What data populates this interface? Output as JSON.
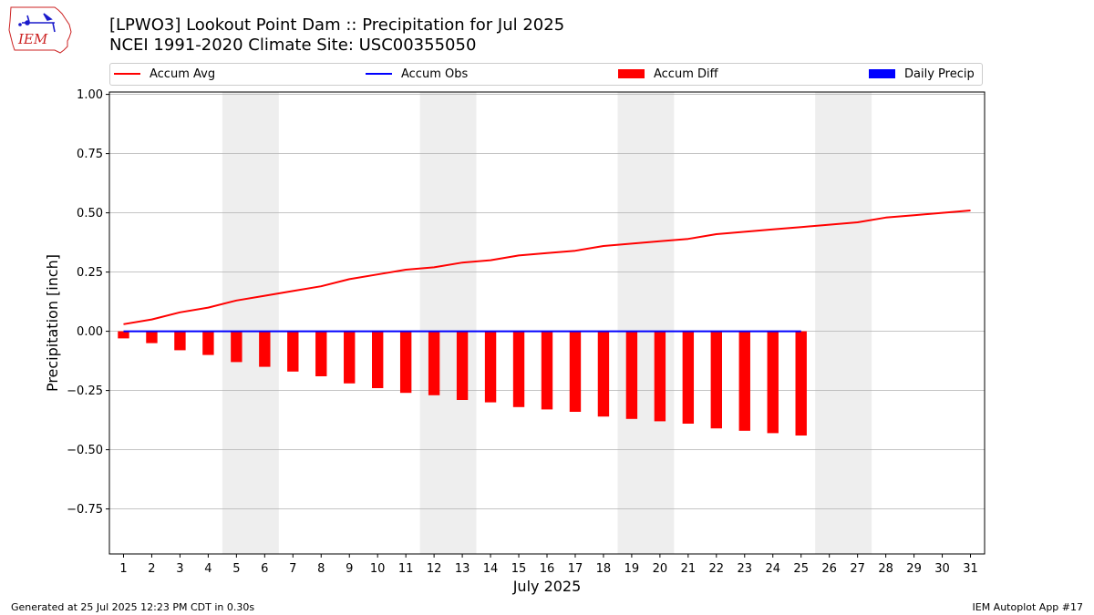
{
  "header": {
    "title_line1": "[LPWO3] Lookout Point Dam :: Precipitation for Jul 2025",
    "title_line2": "NCEI 1991-2020 Climate Site: USC00355050"
  },
  "logo": {
    "text": "IEM"
  },
  "colors": {
    "avg": "#ff0000",
    "obs": "#0000ff",
    "diff": "#ff0000",
    "daily": "#0000ff",
    "weekend": "#eeeeee",
    "grid": "#b0b0b0"
  },
  "footer": {
    "left": "Generated at 25 Jul 2025 12:23 PM CDT in 0.30s",
    "right": "IEM Autoplot App #17"
  },
  "chart_data": {
    "type": "bar",
    "title": "[LPWO3] Lookout Point Dam :: Precipitation for Jul 2025",
    "xlabel": "July 2025",
    "ylabel": "Precipitation [inch]",
    "xlim": [
      0.5,
      31.5
    ],
    "ylim": [
      -0.94,
      1.01
    ],
    "yticks": [
      1.0,
      0.75,
      0.5,
      0.25,
      0.0,
      -0.25,
      -0.5,
      -0.75
    ],
    "ytick_labels": [
      "1.00",
      "0.75",
      "0.50",
      "0.25",
      "0.00",
      "−0.25",
      "−0.50",
      "−0.75"
    ],
    "xticks": [
      1,
      2,
      3,
      4,
      5,
      6,
      7,
      8,
      9,
      10,
      11,
      12,
      13,
      14,
      15,
      16,
      17,
      18,
      19,
      20,
      21,
      22,
      23,
      24,
      25,
      26,
      27,
      28,
      29,
      30,
      31
    ],
    "grid": "horizontal",
    "legend_location": "top",
    "weekend_bands": [
      [
        5,
        6
      ],
      [
        12,
        13
      ],
      [
        19,
        20
      ],
      [
        26,
        27
      ]
    ],
    "series": [
      {
        "name": "Accum Avg",
        "kind": "line",
        "color": "#ff0000",
        "x": [
          1,
          2,
          3,
          4,
          5,
          6,
          7,
          8,
          9,
          10,
          11,
          12,
          13,
          14,
          15,
          16,
          17,
          18,
          19,
          20,
          21,
          22,
          23,
          24,
          25,
          26,
          27,
          28,
          29,
          30,
          31
        ],
        "values": [
          0.03,
          0.05,
          0.08,
          0.1,
          0.13,
          0.15,
          0.17,
          0.19,
          0.22,
          0.24,
          0.26,
          0.27,
          0.29,
          0.3,
          0.32,
          0.33,
          0.34,
          0.36,
          0.37,
          0.38,
          0.39,
          0.41,
          0.42,
          0.43,
          0.44,
          0.45,
          0.46,
          0.48,
          0.49,
          0.5,
          0.51
        ]
      },
      {
        "name": "Accum Obs",
        "kind": "line",
        "color": "#0000ff",
        "x": [
          1,
          2,
          3,
          4,
          5,
          6,
          7,
          8,
          9,
          10,
          11,
          12,
          13,
          14,
          15,
          16,
          17,
          18,
          19,
          20,
          21,
          22,
          23,
          24,
          25
        ],
        "values": [
          0,
          0,
          0,
          0,
          0,
          0,
          0,
          0,
          0,
          0,
          0,
          0,
          0,
          0,
          0,
          0,
          0,
          0,
          0,
          0,
          0,
          0,
          0,
          0,
          0
        ]
      },
      {
        "name": "Accum Diff",
        "kind": "bar",
        "color": "#ff0000",
        "x": [
          1,
          2,
          3,
          4,
          5,
          6,
          7,
          8,
          9,
          10,
          11,
          12,
          13,
          14,
          15,
          16,
          17,
          18,
          19,
          20,
          21,
          22,
          23,
          24,
          25
        ],
        "values": [
          -0.03,
          -0.05,
          -0.08,
          -0.1,
          -0.13,
          -0.15,
          -0.17,
          -0.19,
          -0.22,
          -0.24,
          -0.26,
          -0.27,
          -0.29,
          -0.3,
          -0.32,
          -0.33,
          -0.34,
          -0.36,
          -0.37,
          -0.38,
          -0.39,
          -0.41,
          -0.42,
          -0.43,
          -0.44
        ]
      },
      {
        "name": "Daily Precip",
        "kind": "bar",
        "color": "#0000ff",
        "x": [
          1,
          2,
          3,
          4,
          5,
          6,
          7,
          8,
          9,
          10,
          11,
          12,
          13,
          14,
          15,
          16,
          17,
          18,
          19,
          20,
          21,
          22,
          23,
          24,
          25
        ],
        "values": [
          0,
          0,
          0,
          0,
          0,
          0,
          0,
          0,
          0,
          0,
          0,
          0,
          0,
          0,
          0,
          0,
          0,
          0,
          0,
          0,
          0,
          0,
          0,
          0,
          0
        ]
      }
    ]
  }
}
